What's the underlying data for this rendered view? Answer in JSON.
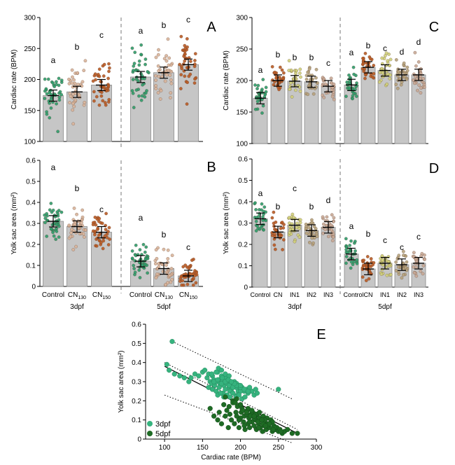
{
  "colors": {
    "control": "#2e9b6a",
    "cn": "#c9a890",
    "cn_dark": "#b85a24",
    "cn130": "#d8b49a",
    "cn150": "#b85a24",
    "in1": "#cfd07a",
    "in2": "#b5a27c",
    "in3": "#c8a896",
    "bar": "#c6c6c6",
    "scatter_3dpf": "#36b37e",
    "scatter_5dpf": "#1e6b24"
  },
  "chart_data": [
    {
      "panel": "A",
      "type": "bar",
      "ylabel": "Cardiac rate (BPM)",
      "ylim": [
        100,
        300
      ],
      "yticks": [
        100,
        150,
        200,
        250,
        300
      ],
      "groups": [
        {
          "label": "3dpf",
          "categories": [
            "Control",
            "CN130",
            "CN150"
          ],
          "values": [
            174,
            180,
            191
          ],
          "letters": [
            "a",
            "b",
            "c"
          ]
        },
        {
          "label": "5dpf",
          "categories": [
            "Control",
            "CN130",
            "CN150"
          ],
          "values": [
            204,
            211,
            224
          ],
          "letters": [
            "a",
            "b",
            "c"
          ]
        }
      ]
    },
    {
      "panel": "B",
      "type": "bar",
      "ylabel": "Yolk sac area (mm²)",
      "ylim": [
        0,
        0.6
      ],
      "yticks": [
        0,
        0.1,
        0.2,
        0.3,
        0.4,
        0.5,
        0.6
      ],
      "groups": [
        {
          "label": "3dpf",
          "categories": [
            "Control",
            "CN130",
            "CN150"
          ],
          "values": [
            0.31,
            0.285,
            0.258
          ],
          "letters": [
            "a",
            "b",
            "c"
          ]
        },
        {
          "label": "5dpf",
          "categories": [
            "Control",
            "CN130",
            "CN150"
          ],
          "values": [
            0.12,
            0.085,
            0.05
          ],
          "letters": [
            "a",
            "b",
            "c"
          ]
        }
      ]
    },
    {
      "panel": "C",
      "type": "bar",
      "ylabel": "Cardiac rate (BPM)",
      "ylim": [
        100,
        300
      ],
      "yticks": [
        100,
        150,
        200,
        250,
        300
      ],
      "groups": [
        {
          "label": "3dpf",
          "categories": [
            "Control",
            "CN",
            "IN1",
            "IN2",
            "IN3"
          ],
          "values": [
            172,
            200,
            199,
            198,
            191
          ],
          "letters": [
            "a",
            "b",
            "b",
            "b",
            "c"
          ]
        },
        {
          "label": "5dpf",
          "categories": [
            "Control",
            "CN",
            "IN1",
            "IN2",
            "IN3"
          ],
          "values": [
            193,
            221,
            216,
            209,
            209
          ],
          "letters": [
            "a",
            "b",
            "c",
            "d",
            "d"
          ]
        }
      ]
    },
    {
      "panel": "D",
      "type": "bar",
      "ylabel": "Yolk sac area (mm²)",
      "ylim": [
        0,
        0.6
      ],
      "yticks": [
        0,
        0.1,
        0.2,
        0.3,
        0.4,
        0.5,
        0.6
      ],
      "groups": [
        {
          "label": "3dpf",
          "categories": [
            "Control",
            "CN",
            "IN1",
            "IN2",
            "IN3"
          ],
          "values": [
            0.32,
            0.258,
            0.29,
            0.265,
            0.28
          ],
          "letters": [
            "a",
            "b",
            "c",
            "b",
            "d"
          ]
        },
        {
          "label": "5dpf",
          "categories": [
            "Control",
            "CN",
            "IN1",
            "IN2",
            "IN3"
          ],
          "values": [
            0.155,
            0.085,
            0.112,
            0.105,
            0.112
          ],
          "letters": [
            "a",
            "b",
            "c",
            "c",
            "c"
          ]
        }
      ]
    },
    {
      "panel": "E",
      "type": "scatter",
      "xlabel": "Cardiac rate (BPM)",
      "ylabel": "Yolk sac area (mm²)",
      "xlim": [
        75,
        300
      ],
      "ylim": [
        0,
        0.6
      ],
      "xticks": [
        100,
        150,
        200,
        250,
        300
      ],
      "yticks": [
        0,
        0.1,
        0.2,
        0.3,
        0.4,
        0.5,
        0.6
      ],
      "legend_position": "bottom-left",
      "series": [
        {
          "name": "3dpf",
          "x": [
            110,
            103,
            106,
            113,
            120,
            126,
            132,
            135,
            140,
            145,
            150,
            153,
            156,
            158,
            160,
            162,
            163,
            165,
            166,
            168,
            170,
            171,
            172,
            173,
            175,
            176,
            178,
            180,
            182,
            184,
            185,
            187,
            188,
            190,
            192,
            194,
            195,
            197,
            199,
            200,
            202,
            205,
            208,
            210,
            212,
            215,
            218,
            220,
            222,
            250,
            158,
            163,
            168,
            172,
            177,
            180,
            186,
            190,
            196,
            200,
            170,
            174,
            178,
            182,
            186,
            190,
            194,
            198,
            202,
            206,
            162,
            168,
            175,
            180,
            185,
            165,
            170,
            175,
            180,
            185,
            190,
            195,
            200,
            205,
            210,
            176,
            184,
            192,
            200,
            188
          ],
          "y": [
            0.51,
            0.39,
            0.36,
            0.34,
            0.33,
            0.32,
            0.3,
            0.32,
            0.34,
            0.33,
            0.35,
            0.36,
            0.32,
            0.34,
            0.3,
            0.29,
            0.33,
            0.31,
            0.28,
            0.3,
            0.35,
            0.37,
            0.31,
            0.29,
            0.33,
            0.3,
            0.28,
            0.32,
            0.29,
            0.31,
            0.27,
            0.3,
            0.26,
            0.28,
            0.3,
            0.27,
            0.29,
            0.25,
            0.28,
            0.26,
            0.27,
            0.25,
            0.26,
            0.24,
            0.27,
            0.25,
            0.23,
            0.26,
            0.24,
            0.26,
            0.27,
            0.26,
            0.25,
            0.27,
            0.24,
            0.26,
            0.25,
            0.24,
            0.23,
            0.25,
            0.23,
            0.24,
            0.22,
            0.23,
            0.22,
            0.24,
            0.22,
            0.23,
            0.21,
            0.22,
            0.34,
            0.35,
            0.36,
            0.34,
            0.33,
            0.3,
            0.31,
            0.29,
            0.3,
            0.28,
            0.27,
            0.28,
            0.27,
            0.26,
            0.25,
            0.32,
            0.31,
            0.29,
            0.28,
            0.3
          ]
        },
        {
          "name": "5dpf",
          "x": [
            160,
            165,
            170,
            172,
            175,
            178,
            180,
            182,
            184,
            186,
            188,
            190,
            192,
            194,
            195,
            196,
            198,
            200,
            201,
            202,
            204,
            205,
            206,
            208,
            209,
            210,
            211,
            212,
            214,
            215,
            216,
            218,
            219,
            220,
            221,
            222,
            224,
            225,
            226,
            228,
            229,
            230,
            231,
            232,
            234,
            235,
            236,
            238,
            240,
            242,
            244,
            246,
            248,
            250,
            252,
            255,
            258,
            262,
            268,
            275,
            185,
            190,
            198,
            205,
            212,
            218,
            224,
            230,
            236,
            242,
            195,
            200,
            210,
            215,
            220,
            225,
            232,
            238,
            245,
            180,
            193,
            203,
            213,
            223,
            233,
            243,
            253,
            228,
            218,
            208
          ],
          "y": [
            0.16,
            0.12,
            0.1,
            0.14,
            0.08,
            0.18,
            0.12,
            0.15,
            0.06,
            0.13,
            0.1,
            0.2,
            0.08,
            0.14,
            0.12,
            0.17,
            0.06,
            0.11,
            0.14,
            0.16,
            0.09,
            0.12,
            0.05,
            0.13,
            0.15,
            0.08,
            0.11,
            0.06,
            0.13,
            0.09,
            0.14,
            0.07,
            0.12,
            0.1,
            0.05,
            0.13,
            0.08,
            0.11,
            0.06,
            0.1,
            0.04,
            0.12,
            0.07,
            0.09,
            0.05,
            0.11,
            0.08,
            0.06,
            0.1,
            0.04,
            0.07,
            0.05,
            0.06,
            0.04,
            0.05,
            0.03,
            0.04,
            0.05,
            0.03,
            0.03,
            0.17,
            0.19,
            0.1,
            0.07,
            0.09,
            0.11,
            0.06,
            0.08,
            0.07,
            0.09,
            0.21,
            0.18,
            0.16,
            0.15,
            0.13,
            0.14,
            0.1,
            0.08,
            0.06,
            0.22,
            0.19,
            0.15,
            0.12,
            0.09,
            0.07,
            0.05,
            0.04,
            0.1,
            0.12,
            0.14
          ]
        }
      ]
    }
  ],
  "figure": {
    "panel_labels": [
      "A",
      "B",
      "C",
      "D",
      "E"
    ],
    "left_categories": [
      "Control",
      "CN",
      "CN"
    ],
    "left_subscripts": [
      "",
      "130",
      "150"
    ],
    "right_categories": [
      "Control",
      "CN",
      "IN1",
      "IN2",
      "IN3"
    ],
    "group_labels": [
      "3dpf",
      "5dpf"
    ],
    "ylabels": {
      "cardiac": "Cardiac rate (BPM)",
      "yolk": "Yolk sac area (mm²)"
    },
    "e_xlabel": "Cardiac rate (BPM)",
    "e_ylabel": "Yolk sac area (mm²)",
    "legend": [
      "3dpf",
      "5dpf"
    ]
  }
}
